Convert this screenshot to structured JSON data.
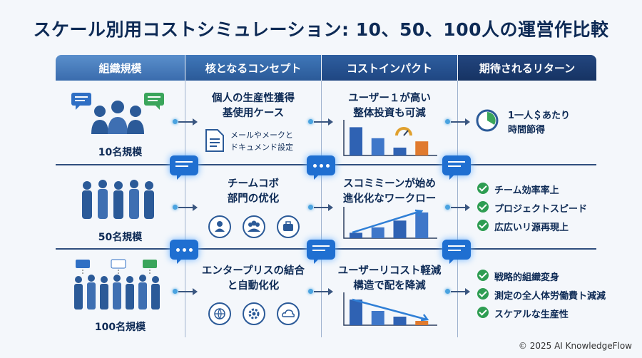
{
  "title": "スケール別用コストシミュレーション: 10、50、100人の運営作比較",
  "headers": [
    "組織規模",
    "核となるコンセプト",
    "コストインパクト",
    "期待されるリターン"
  ],
  "rows": [
    {
      "size_label": "10名規模",
      "concept_title": "個人の生産性獲得\n基使用ケース",
      "concept_detail": "メールやメークと\nドキュメンド設定",
      "cost_title": "ユーザー１が高い\n整体投資も可減",
      "cost_bars": [
        0.9,
        0.55,
        0.25,
        0.45
      ],
      "returns": [
        "1一人＄あたり\n時間節得"
      ]
    },
    {
      "size_label": "50名規模",
      "concept_title": "チームコボ\n部門の优化",
      "cost_title": "スコミミーンが始め\n進化化なワークロー",
      "cost_bars": [
        0.2,
        0.4,
        0.65,
        0.95
      ],
      "returns": [
        "チーム効率率上",
        "プロジェクトスピード",
        "広広いリ源再現上"
      ]
    },
    {
      "size_label": "100名規模",
      "concept_title": "エンタープリスの結合\nと自動化化",
      "cost_title": "ユーザーリコスト軽減\n構造で配を降減",
      "cost_bars": [
        0.9,
        0.5,
        0.3,
        0.15
      ],
      "returns": [
        "戦略的組織変身",
        "測定の全人体労働費ト減減",
        "スケアルな生産性"
      ]
    }
  ],
  "footer": "© 2025 AI KnowledgeFlow",
  "colors": {
    "accent": "#1f6fd1",
    "check": "#2e9d52",
    "bar": "#2f62b3",
    "bar_orange": "#e07a2e"
  },
  "icons": [
    "chat-bubble-icon",
    "people-icon",
    "document-icon",
    "gauge-icon",
    "clock-icon",
    "user-icon",
    "team-icon",
    "briefcase-icon",
    "globe-icon",
    "gear-icon",
    "cloud-icon",
    "check-icon"
  ]
}
